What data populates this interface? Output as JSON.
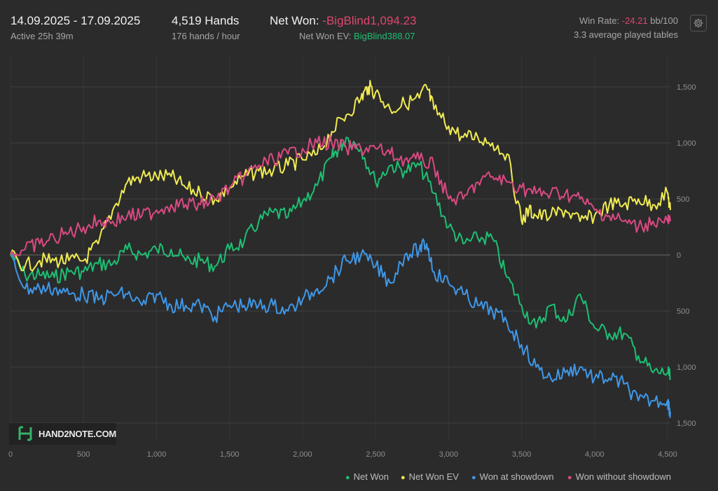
{
  "header": {
    "date_range": "14.09.2025 - 17.09.2025",
    "active": "Active 25h 39m",
    "hands": "4,519 Hands",
    "hands_per_hour": "176 hands / hour",
    "net_won_label": "Net Won:",
    "net_won_value": "-BigBlind1,094.23",
    "net_won_ev_label": "Net Won  EV:",
    "net_won_ev_value": "BigBlind388.07",
    "win_rate_label": "Win Rate:",
    "win_rate_value": "-24.21",
    "win_rate_unit": "bb/100",
    "avg_tables": "3.3 average played tables"
  },
  "logo_text": "HAND2NOTE.COM",
  "icons": {
    "settings": "gear-icon",
    "logo": "hand2note-logo-icon"
  },
  "chart_data": {
    "type": "line",
    "title": "",
    "xlabel": "",
    "ylabel": "",
    "xlim": [
      0,
      4519
    ],
    "ylim": [
      -1500,
      1700
    ],
    "grid": true,
    "x_ticks": [
      0,
      500,
      1000,
      1500,
      2000,
      2500,
      3000,
      3500,
      4000,
      4500
    ],
    "x_tick_labels": [
      "0",
      "500",
      "1,000",
      "1,500",
      "2,000",
      "2,500",
      "3,000",
      "3,500",
      "4,000",
      "4,500"
    ],
    "y_ticks": [
      1500,
      1000,
      500,
      0,
      -500,
      -1000,
      -1500
    ],
    "y_tick_labels": [
      "1,500",
      "1,000",
      "500",
      "0",
      "500",
      "1,000",
      "1,500"
    ],
    "legend_position": "bottom-right",
    "series": [
      {
        "name": "Net Won",
        "color": "#1dbf73",
        "x": [
          0,
          100,
          200,
          300,
          400,
          500,
          600,
          700,
          800,
          900,
          1000,
          1100,
          1200,
          1300,
          1400,
          1500,
          1600,
          1700,
          1800,
          1900,
          2000,
          2100,
          2200,
          2250,
          2300,
          2400,
          2500,
          2600,
          2700,
          2800,
          2900,
          3000,
          3100,
          3200,
          3300,
          3400,
          3500,
          3600,
          3700,
          3800,
          3900,
          4000,
          4100,
          4200,
          4300,
          4400,
          4500,
          4519
        ],
        "values": [
          0,
          -180,
          -180,
          -200,
          -150,
          -150,
          -80,
          -80,
          50,
          0,
          50,
          50,
          -50,
          -50,
          -100,
          50,
          120,
          300,
          380,
          340,
          480,
          620,
          870,
          950,
          1050,
          950,
          650,
          800,
          750,
          800,
          550,
          250,
          100,
          150,
          150,
          -200,
          -450,
          -650,
          -450,
          -600,
          -350,
          -650,
          -700,
          -700,
          -900,
          -1050,
          -1050,
          -1100
        ]
      },
      {
        "name": "Net Won  EV",
        "color": "#f0eb52",
        "x": [
          0,
          100,
          200,
          300,
          400,
          500,
          600,
          700,
          800,
          900,
          1000,
          1100,
          1200,
          1300,
          1400,
          1500,
          1600,
          1700,
          1800,
          1900,
          2000,
          2100,
          2200,
          2300,
          2400,
          2450,
          2500,
          2600,
          2700,
          2800,
          2850,
          2900,
          3000,
          3100,
          3200,
          3300,
          3400,
          3500,
          3550,
          3600,
          3700,
          3800,
          3900,
          4000,
          4100,
          4200,
          4300,
          4400,
          4500,
          4519
        ],
        "values": [
          0,
          -100,
          -50,
          -50,
          -50,
          -50,
          100,
          400,
          650,
          700,
          700,
          700,
          600,
          550,
          500,
          600,
          700,
          750,
          750,
          800,
          850,
          900,
          1100,
          1250,
          1400,
          1500,
          1450,
          1300,
          1350,
          1400,
          1500,
          1300,
          1150,
          1050,
          1050,
          1000,
          900,
          300,
          400,
          350,
          350,
          400,
          300,
          350,
          450,
          450,
          500,
          450,
          550,
          400
        ]
      },
      {
        "name": "Won at showdown",
        "color": "#3f97e8",
        "x": [
          0,
          100,
          200,
          300,
          400,
          500,
          600,
          700,
          800,
          900,
          1000,
          1100,
          1200,
          1300,
          1400,
          1500,
          1600,
          1700,
          1800,
          1900,
          2000,
          2100,
          2200,
          2300,
          2400,
          2500,
          2600,
          2700,
          2800,
          2850,
          2900,
          3000,
          3100,
          3200,
          3300,
          3400,
          3500,
          3600,
          3700,
          3800,
          3900,
          4000,
          4100,
          4200,
          4300,
          4400,
          4500,
          4519
        ],
        "values": [
          0,
          -300,
          -300,
          -300,
          -350,
          -350,
          -400,
          -350,
          -350,
          -450,
          -350,
          -450,
          -450,
          -450,
          -550,
          -450,
          -450,
          -450,
          -450,
          -500,
          -400,
          -300,
          -200,
          -50,
          0,
          -100,
          -250,
          0,
          50,
          100,
          -150,
          -250,
          -350,
          -450,
          -500,
          -600,
          -800,
          -1000,
          -1100,
          -1050,
          -1000,
          -1100,
          -1100,
          -1150,
          -1300,
          -1300,
          -1300,
          -1400
        ]
      },
      {
        "name": "Won without showdown",
        "color": "#d94a82",
        "x": [
          0,
          100,
          200,
          300,
          400,
          500,
          600,
          700,
          800,
          900,
          1000,
          1100,
          1200,
          1300,
          1400,
          1500,
          1600,
          1700,
          1800,
          1900,
          2000,
          2100,
          2200,
          2300,
          2400,
          2500,
          2600,
          2700,
          2800,
          2900,
          3000,
          3100,
          3200,
          3300,
          3400,
          3500,
          3600,
          3700,
          3800,
          3900,
          4000,
          4100,
          4200,
          4300,
          4400,
          4500,
          4519
        ],
        "values": [
          0,
          50,
          100,
          150,
          200,
          250,
          300,
          300,
          350,
          350,
          400,
          450,
          450,
          450,
          500,
          600,
          700,
          800,
          850,
          900,
          950,
          1000,
          1000,
          950,
          950,
          950,
          900,
          850,
          850,
          800,
          500,
          500,
          650,
          700,
          650,
          600,
          550,
          550,
          550,
          500,
          400,
          350,
          300,
          250,
          300,
          300,
          300
        ]
      }
    ]
  }
}
